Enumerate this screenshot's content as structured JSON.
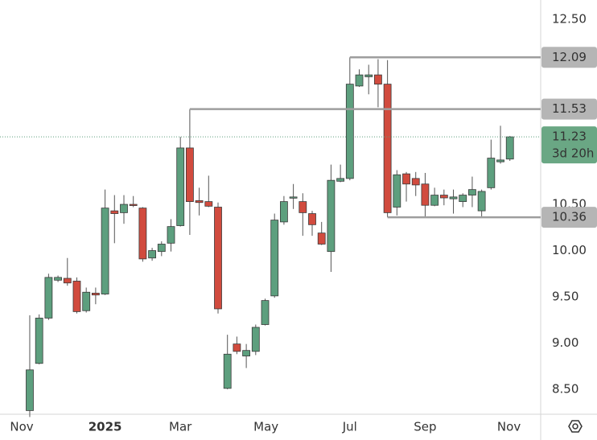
{
  "chart_data": {
    "type": "candlestick",
    "up_color": "#5d9f7e",
    "down_color": "#d14b3e",
    "xlim": [
      -3.16,
      54.27
    ],
    "ylim": [
      8.23,
      12.71
    ],
    "xticks": [
      {
        "value": -0.85,
        "label": "Nov"
      },
      {
        "value": 8.0,
        "label": "2025"
      },
      {
        "value": 16.0,
        "label": "Mar"
      },
      {
        "value": 25.1,
        "label": "May"
      },
      {
        "value": 34.0,
        "label": "Jul"
      },
      {
        "value": 42.0,
        "label": "Sep"
      },
      {
        "value": 50.9,
        "label": "Nov"
      }
    ],
    "yticks": [
      {
        "value": 8.5,
        "label": "8.50"
      },
      {
        "value": 9.0,
        "label": "9.00"
      },
      {
        "value": 9.5,
        "label": "9.50"
      },
      {
        "value": 10.0,
        "label": "10.00"
      },
      {
        "value": 10.5,
        "label": "10.50"
      },
      {
        "value": 12.5,
        "label": "12.50"
      }
    ],
    "open": [
      8.27,
      8.78,
      9.27,
      9.68,
      9.7,
      9.67,
      9.35,
      9.54,
      9.53,
      10.43,
      10.41,
      10.5,
      10.46,
      9.92,
      9.99,
      10.08,
      10.27,
      11.11,
      10.54,
      10.53,
      10.47,
      8.51,
      8.99,
      8.86,
      8.91,
      9.2,
      9.51,
      10.31,
      10.57,
      10.53,
      10.4,
      10.19,
      9.99,
      10.75,
      10.78,
      11.78,
      11.88,
      11.9,
      11.8,
      10.47,
      10.83,
      10.78,
      10.72,
      10.49,
      10.6,
      10.56,
      10.53,
      10.6,
      10.43,
      10.68,
      10.96,
      10.99
    ],
    "high": [
      9.3,
      9.31,
      9.75,
      9.73,
      9.92,
      9.71,
      9.6,
      9.6,
      10.66,
      10.6,
      10.6,
      10.59,
      10.47,
      10.03,
      10.1,
      10.34,
      11.23,
      11.53,
      10.68,
      10.81,
      10.52,
      9.09,
      9.07,
      8.99,
      9.2,
      9.48,
      10.4,
      10.59,
      10.72,
      10.62,
      10.43,
      10.31,
      10.93,
      10.93,
      12.09,
      11.96,
      12.01,
      12.07,
      12.06,
      10.87,
      10.85,
      10.85,
      10.84,
      10.68,
      10.66,
      10.66,
      10.62,
      10.8,
      10.66,
      11.2,
      11.35,
      11.24
    ],
    "low": [
      8.2,
      8.77,
      9.25,
      9.66,
      9.62,
      9.32,
      9.33,
      9.42,
      9.52,
      10.08,
      10.29,
      10.47,
      9.88,
      9.89,
      9.94,
      9.99,
      10.26,
      10.17,
      10.38,
      10.47,
      9.32,
      8.5,
      8.88,
      8.73,
      8.87,
      9.19,
      9.49,
      10.28,
      10.45,
      10.16,
      10.16,
      10.06,
      9.77,
      10.74,
      10.76,
      11.77,
      11.69,
      11.55,
      10.36,
      10.38,
      10.53,
      10.59,
      10.37,
      10.48,
      10.49,
      10.4,
      10.47,
      10.47,
      10.36,
      10.66,
      10.94,
      10.97
    ],
    "close": [
      8.71,
      9.27,
      9.71,
      9.71,
      9.65,
      9.34,
      9.55,
      9.52,
      10.46,
      10.4,
      10.5,
      10.49,
      9.91,
      10.0,
      10.07,
      10.26,
      11.11,
      10.53,
      10.52,
      10.48,
      9.37,
      8.88,
      8.91,
      8.92,
      9.17,
      9.46,
      10.33,
      10.53,
      10.58,
      10.41,
      10.28,
      10.07,
      10.76,
      10.78,
      11.8,
      11.9,
      11.9,
      11.8,
      10.41,
      10.82,
      10.72,
      10.71,
      10.49,
      10.6,
      10.57,
      10.58,
      10.6,
      10.66,
      10.64,
      11.0,
      10.98,
      11.23
    ],
    "levels": [
      {
        "value": 12.09,
        "from": 34
      },
      {
        "value": 11.53,
        "from": 17
      },
      {
        "value": 10.36,
        "from": 38
      }
    ],
    "last_price": {
      "value": 11.23,
      "countdown": "3d 20h"
    }
  }
}
